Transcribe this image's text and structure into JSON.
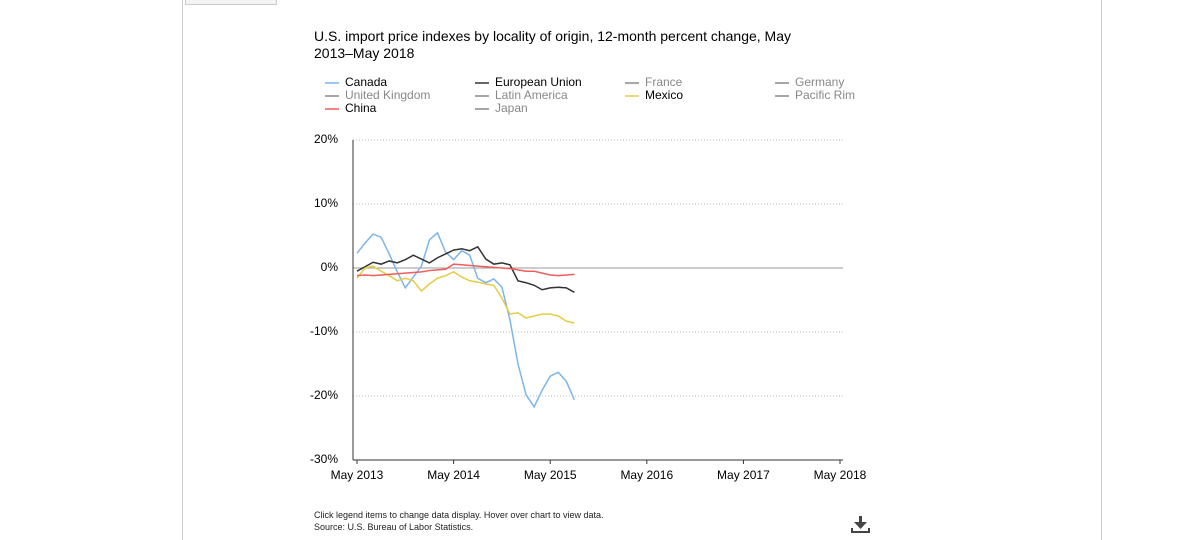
{
  "chart_data": {
    "type": "line",
    "title": "U.S. import price indexes by locality of origin, 12-month percent change, May 2013–May 2018",
    "x": [
      "2013-05",
      "2013-06",
      "2013-07",
      "2013-08",
      "2013-09",
      "2013-10",
      "2013-11",
      "2013-12",
      "2014-01",
      "2014-02",
      "2014-03",
      "2014-04",
      "2014-05",
      "2014-06",
      "2014-07",
      "2014-08",
      "2014-09",
      "2014-10",
      "2014-11",
      "2014-12",
      "2015-01",
      "2015-02",
      "2015-03",
      "2015-04",
      "2015-05",
      "2015-06",
      "2015-07",
      "2015-08"
    ],
    "series": [
      {
        "name": "Canada",
        "color": "#7cb5ec",
        "values": [
          2.3,
          3.9,
          5.3,
          4.8,
          2.2,
          -0.6,
          -3.1,
          -1.4,
          0.3,
          4.4,
          5.5,
          2.5,
          1.3,
          2.7,
          2.0,
          -1.6,
          -2.3,
          -1.7,
          -3.0,
          -8.1,
          -15.0,
          -19.8,
          -21.7,
          -19.1,
          -16.9,
          -16.3,
          -17.7,
          -20.6
        ]
      },
      {
        "name": "European Union",
        "color": "#333333",
        "values": [
          -0.5,
          0.2,
          0.9,
          0.6,
          1.1,
          0.8,
          1.3,
          2.0,
          1.4,
          0.8,
          1.6,
          2.2,
          2.8,
          3.0,
          2.7,
          3.3,
          1.4,
          0.6,
          0.8,
          0.5,
          -2.0,
          -2.3,
          -2.7,
          -3.4,
          -3.1,
          -3.0,
          -3.1,
          -3.8
        ]
      },
      {
        "name": "France",
        "visible": false
      },
      {
        "name": "Germany",
        "visible": false
      },
      {
        "name": "United Kingdom",
        "visible": false
      },
      {
        "name": "Latin America",
        "visible": false
      },
      {
        "name": "Mexico",
        "color": "#e4cc44",
        "values": [
          -1.6,
          0.0,
          0.3,
          -0.5,
          -1.2,
          -2.0,
          -1.6,
          -2.0,
          -3.6,
          -2.5,
          -1.6,
          -1.2,
          -0.6,
          -1.4,
          -2.0,
          -2.2,
          -2.5,
          -2.7,
          -4.7,
          -7.2,
          -7.0,
          -7.8,
          -7.5,
          -7.2,
          -7.2,
          -7.5,
          -8.3,
          -8.6
        ]
      },
      {
        "name": "Pacific Rim",
        "visible": false
      },
      {
        "name": "China",
        "color": "#f15c5c",
        "values": [
          -1.2,
          -1.1,
          -1.2,
          -1.1,
          -1.0,
          -0.9,
          -0.8,
          -0.7,
          -0.6,
          -0.4,
          -0.3,
          -0.2,
          0.6,
          0.5,
          0.4,
          0.3,
          0.2,
          0.1,
          0.0,
          -0.1,
          -0.3,
          -0.5,
          -0.5,
          -0.8,
          -1.1,
          -1.2,
          -1.1,
          -1.0
        ]
      },
      {
        "name": "Japan",
        "visible": false
      }
    ],
    "xlim": [
      "2013-05",
      "2018-05"
    ],
    "xticks": [
      {
        "value": "2013-05",
        "label": "May 2013"
      },
      {
        "value": "2014-05",
        "label": "May 2014"
      },
      {
        "value": "2015-05",
        "label": "May 2015"
      },
      {
        "value": "2016-05",
        "label": "May 2016"
      },
      {
        "value": "2017-05",
        "label": "May 2017"
      },
      {
        "value": "2018-05",
        "label": "May 2018"
      }
    ],
    "ylim": [
      -30,
      20
    ],
    "yticks": [
      {
        "value": -30,
        "label": "-30%"
      },
      {
        "value": -20,
        "label": "-20%"
      },
      {
        "value": -10,
        "label": "-10%"
      },
      {
        "value": 0,
        "label": "0%"
      },
      {
        "value": 10,
        "label": "10%"
      },
      {
        "value": 20,
        "label": "20%"
      }
    ],
    "grid": true,
    "notes": [
      "Click legend items to change data display. Hover over chart to view data.",
      "Source: U.S. Bureau of Labor Statistics."
    ]
  }
}
